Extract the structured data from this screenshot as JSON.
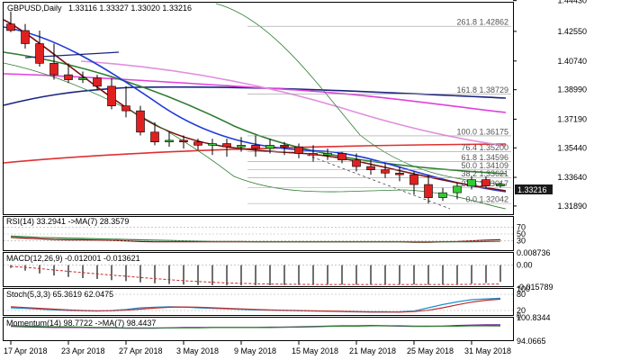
{
  "header": {
    "symbol": "GBPUSD,Daily",
    "ohlc": "1.33116 1.33327 1.33020 1.33216"
  },
  "fib_levels": [
    {
      "label": "261.8 1.42862",
      "price": 1.42862
    },
    {
      "label": "161.8 1.38729",
      "price": 1.38729
    },
    {
      "label": "100.0 1.36175",
      "price": 1.36175
    },
    {
      "label": "76.4 1.35200",
      "price": 1.352
    },
    {
      "label": "61.8 1.34596",
      "price": 1.34596
    },
    {
      "label": "50.0 1.34109",
      "price": 1.34109
    },
    {
      "label": "38.2 1.33621",
      "price": 1.33621
    },
    {
      "label": "23.6 1.33017",
      "price": 1.33017
    },
    {
      "label": "0.0 1.32042",
      "price": 1.32042
    }
  ],
  "current_price": "1.33216",
  "panels": {
    "rsi": {
      "label": "RSI(14) 33.2941  ->MA(7) 28.3579",
      "ticks": [
        "70",
        "50",
        "30"
      ]
    },
    "macd": {
      "label": "MACD(12,26,9) -0.012001 -0.013621",
      "ticks": [
        "0.008736",
        "0.00",
        "-0.015789"
      ]
    },
    "stoch": {
      "label": "Stoch(5,3,3) 65.3619 62.0475",
      "ticks": [
        "100",
        "80",
        "20",
        "0"
      ]
    },
    "momentum": {
      "label": "Momentum(14) 98.7722  ->MA(7) 98.4437",
      "ticks": [
        "100.8344",
        "94.0665"
      ]
    }
  },
  "chart_data": [
    {
      "type": "candlestick",
      "title": "GBPUSD,Daily",
      "x": [
        "17 Apr 2018",
        "18 Apr 2018",
        "19 Apr 2018",
        "20 Apr 2018",
        "23 Apr 2018",
        "24 Apr 2018",
        "25 Apr 2018",
        "26 Apr 2018",
        "27 Apr 2018",
        "30 Apr 2018",
        "1 May 2018",
        "2 May 2018",
        "3 May 2018",
        "4 May 2018",
        "7 May 2018",
        "8 May 2018",
        "9 May 2018",
        "10 May 2018",
        "11 May 2018",
        "14 May 2018",
        "15 May 2018",
        "16 May 2018",
        "17 May 2018",
        "18 May 2018",
        "21 May 2018",
        "22 May 2018",
        "23 May 2018",
        "24 May 2018",
        "25 May 2018",
        "28 May 2018",
        "29 May 2018",
        "30 May 2018",
        "31 May 2018",
        "1 Jun 2018",
        "4 Jun 2018"
      ],
      "x_tick_labels": [
        "17 Apr 2018",
        "23 Apr 2018",
        "27 Apr 2018",
        "3 May 2018",
        "9 May 2018",
        "15 May 2018",
        "21 May 2018",
        "25 May 2018",
        "31 May 2018"
      ],
      "open": [
        1.43,
        1.426,
        1.418,
        1.406,
        1.399,
        1.396,
        1.397,
        1.392,
        1.38,
        1.377,
        1.364,
        1.358,
        1.359,
        1.358,
        1.356,
        1.357,
        1.355,
        1.356,
        1.354,
        1.356,
        1.355,
        1.351,
        1.35,
        1.351,
        1.347,
        1.343,
        1.341,
        1.339,
        1.338,
        1.332,
        1.324,
        1.327,
        1.331,
        1.335,
        1.3312
      ],
      "high": [
        1.4376,
        1.43,
        1.426,
        1.418,
        1.406,
        1.401,
        1.399,
        1.397,
        1.392,
        1.38,
        1.37,
        1.364,
        1.362,
        1.36,
        1.36,
        1.36,
        1.361,
        1.362,
        1.36,
        1.358,
        1.357,
        1.356,
        1.354,
        1.352,
        1.351,
        1.347,
        1.345,
        1.343,
        1.34,
        1.338,
        1.33,
        1.333,
        1.337,
        1.337,
        1.3333
      ],
      "low": [
        1.425,
        1.415,
        1.404,
        1.396,
        1.394,
        1.394,
        1.39,
        1.378,
        1.373,
        1.362,
        1.356,
        1.355,
        1.354,
        1.353,
        1.35,
        1.349,
        1.352,
        1.349,
        1.351,
        1.35,
        1.348,
        1.346,
        1.347,
        1.345,
        1.34,
        1.338,
        1.336,
        1.334,
        1.326,
        1.3204,
        1.322,
        1.323,
        1.329,
        1.33,
        1.3302
      ],
      "close": [
        1.426,
        1.418,
        1.406,
        1.399,
        1.396,
        1.397,
        1.392,
        1.38,
        1.377,
        1.364,
        1.358,
        1.359,
        1.358,
        1.356,
        1.357,
        1.355,
        1.356,
        1.354,
        1.356,
        1.355,
        1.351,
        1.35,
        1.351,
        1.347,
        1.343,
        1.341,
        1.339,
        1.338,
        1.332,
        1.324,
        1.327,
        1.331,
        1.335,
        1.3312,
        1.33216
      ],
      "ylim": [
        1.3139,
        1.443
      ],
      "y_tick_labels": [
        "1.44430",
        "1.42550",
        "1.40740",
        "1.38990",
        "1.37190",
        "1.35440",
        "1.33640",
        "1.31890"
      ]
    },
    {
      "type": "line",
      "title": "RSI(14) 33.2941  ->MA(7) 28.3579",
      "ylim": [
        0,
        100
      ],
      "y_tick_labels": [
        "70",
        "50",
        "30"
      ],
      "series": [
        {
          "name": "RSI(14)",
          "color": "#8b0000",
          "values": [
            40,
            38,
            36,
            34,
            33,
            33,
            32,
            31,
            30,
            28,
            27,
            27,
            27,
            27,
            27,
            27,
            27,
            27,
            27,
            27,
            27,
            27,
            27,
            27,
            27,
            27,
            27,
            27,
            26,
            26,
            27,
            28,
            30,
            32,
            33.29
          ]
        },
        {
          "name": "MA(7)",
          "color": "#2e7d32",
          "values": [
            44,
            42,
            40,
            39,
            38,
            37,
            36,
            35,
            34,
            33,
            32,
            31,
            30,
            29,
            28,
            28,
            28,
            27,
            27,
            27,
            27,
            27,
            27,
            27,
            27,
            27,
            27,
            27,
            27,
            27,
            27,
            27,
            27,
            28,
            28.36
          ]
        }
      ]
    },
    {
      "type": "bar",
      "title": "MACD(12,26,9) -0.012001 -0.013621",
      "ylim": [
        -0.015789,
        0.008736
      ],
      "y_tick_labels": [
        "0.008736",
        "0.00",
        "-0.015789"
      ],
      "series": [
        {
          "name": "MACD",
          "values": [
            -0.002,
            -0.004,
            -0.006,
            -0.0075,
            -0.0085,
            -0.0093,
            -0.01,
            -0.0108,
            -0.0115,
            -0.0124,
            -0.0131,
            -0.0136,
            -0.014,
            -0.0143,
            -0.0145,
            -0.0146,
            -0.0146,
            -0.0146,
            -0.0145,
            -0.0144,
            -0.0143,
            -0.0142,
            -0.0141,
            -0.014,
            -0.014,
            -0.014,
            -0.0139,
            -0.0139,
            -0.0139,
            -0.014,
            -0.0139,
            -0.0137,
            -0.0133,
            -0.0128,
            -0.012
          ]
        },
        {
          "name": "Signal",
          "values": [
            -0.001,
            -0.0016,
            -0.0025,
            -0.0035,
            -0.0045,
            -0.0054,
            -0.0063,
            -0.0072,
            -0.008,
            -0.0089,
            -0.0097,
            -0.0105,
            -0.0112,
            -0.0118,
            -0.0123,
            -0.0128,
            -0.0131,
            -0.0134,
            -0.0136,
            -0.0137,
            -0.0138,
            -0.0139,
            -0.0139,
            -0.0139,
            -0.0139,
            -0.0139,
            -0.0139,
            -0.0139,
            -0.0139,
            -0.0139,
            -0.0139,
            -0.0139,
            -0.0138,
            -0.0137,
            -0.0136
          ]
        }
      ]
    },
    {
      "type": "line",
      "title": "Stoch(5,3,3) 65.3619 62.0475",
      "ylim": [
        0,
        100
      ],
      "y_tick_labels": [
        "100",
        "80",
        "20",
        "0"
      ],
      "series": [
        {
          "name": "%K",
          "color": "#1f8fd0",
          "values": [
            30,
            28,
            25,
            22,
            20,
            19,
            18,
            20,
            24,
            30,
            32,
            34,
            33,
            30,
            28,
            26,
            24,
            22,
            21,
            20,
            19,
            18,
            17,
            16,
            15,
            14,
            14,
            15,
            18,
            30,
            42,
            52,
            60,
            63,
            65.36
          ]
        },
        {
          "name": "%D",
          "color": "#c62828",
          "values": [
            34,
            31,
            28,
            25,
            22,
            20,
            19,
            19,
            21,
            25,
            29,
            32,
            33,
            32,
            30,
            28,
            26,
            24,
            22,
            21,
            20,
            19,
            18,
            17,
            16,
            15,
            15,
            14,
            16,
            21,
            30,
            41,
            51,
            58,
            62.05
          ]
        }
      ]
    },
    {
      "type": "line",
      "title": "Momentum(14) 98.7722  ->MA(7) 98.4437",
      "ylim": [
        94.0665,
        100.8344
      ],
      "y_tick_labels": [
        "100.8344",
        "94.0665"
      ],
      "series": [
        {
          "name": "Momentum(14)",
          "color": "#7b1fa2",
          "values": [
            98.3,
            98.2,
            98.1,
            98.0,
            98.0,
            98.0,
            97.9,
            97.9,
            97.8,
            97.8,
            97.8,
            97.9,
            98.0,
            98.0,
            98.0,
            98.0,
            98.0,
            98.0,
            98.1,
            98.1,
            98.2,
            98.3,
            98.4,
            98.5,
            98.5,
            98.6,
            98.5,
            98.4,
            98.3,
            98.3,
            98.4,
            98.6,
            98.7,
            98.8,
            98.77
          ]
        },
        {
          "name": "MA(7)",
          "color": "#2e7d32",
          "values": [
            98.5,
            98.4,
            98.3,
            98.2,
            98.2,
            98.1,
            98.0,
            98.0,
            97.9,
            97.9,
            97.9,
            97.9,
            97.9,
            97.9,
            98.0,
            98.0,
            98.0,
            98.0,
            98.0,
            98.1,
            98.1,
            98.2,
            98.3,
            98.4,
            98.4,
            98.5,
            98.5,
            98.5,
            98.4,
            98.4,
            98.4,
            98.4,
            98.5,
            98.5,
            98.44
          ]
        }
      ]
    }
  ]
}
